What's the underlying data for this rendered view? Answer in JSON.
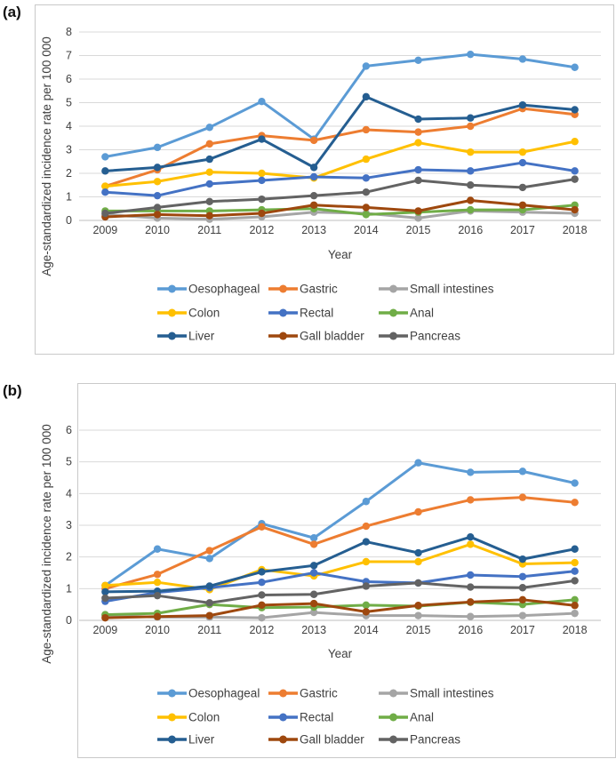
{
  "panels": {
    "a": {
      "label": "(a)"
    },
    "b": {
      "label": "(b)"
    }
  },
  "palette": {
    "grid_color": "#d9d9d9",
    "axis_line_color": "#bfbfbf",
    "text_color": "#404040"
  },
  "chart_data": [
    {
      "id": "a",
      "type": "line",
      "title": "",
      "xlabel": "Year",
      "ylabel": "Age-standardized incidence rate per 100 000",
      "x": [
        2009,
        2010,
        2011,
        2012,
        2013,
        2014,
        2015,
        2016,
        2017,
        2018
      ],
      "ylim": [
        0,
        8
      ],
      "ytick_step": 1,
      "grid": true,
      "legend_position": "bottom",
      "series": [
        {
          "name": "Oesophageal",
          "color": "#5B9BD5",
          "values": [
            2.7,
            3.1,
            3.95,
            5.05,
            3.45,
            6.55,
            6.8,
            7.05,
            6.85,
            6.5
          ]
        },
        {
          "name": "Gastric",
          "color": "#ED7D31",
          "values": [
            1.45,
            2.15,
            3.25,
            3.6,
            3.4,
            3.85,
            3.75,
            4.0,
            4.75,
            4.5
          ]
        },
        {
          "name": "Small intestines",
          "color": "#A5A5A5",
          "values": [
            0.25,
            0.1,
            0.05,
            0.15,
            0.35,
            0.3,
            0.1,
            0.4,
            0.35,
            0.3
          ]
        },
        {
          "name": "Colon",
          "color": "#FFC000",
          "values": [
            1.45,
            1.65,
            2.05,
            2.0,
            1.8,
            2.6,
            3.3,
            2.9,
            2.9,
            3.35
          ]
        },
        {
          "name": "Rectal",
          "color": "#4472C4",
          "values": [
            1.2,
            1.05,
            1.55,
            1.7,
            1.85,
            1.8,
            2.15,
            2.1,
            2.45,
            2.1
          ]
        },
        {
          "name": "Anal",
          "color": "#70AD47",
          "values": [
            0.4,
            0.4,
            0.4,
            0.45,
            0.5,
            0.25,
            0.35,
            0.45,
            0.45,
            0.65
          ]
        },
        {
          "name": "Liver",
          "color": "#255E91",
          "values": [
            2.1,
            2.25,
            2.6,
            3.45,
            2.25,
            5.25,
            4.3,
            4.35,
            4.9,
            4.7
          ]
        },
        {
          "name": "Gall bladder",
          "color": "#9E480E",
          "values": [
            0.15,
            0.25,
            0.2,
            0.3,
            0.65,
            0.55,
            0.4,
            0.85,
            0.65,
            0.45
          ]
        },
        {
          "name": "Pancreas",
          "color": "#636363",
          "values": [
            0.3,
            0.55,
            0.8,
            0.9,
            1.05,
            1.2,
            1.7,
            1.5,
            1.4,
            1.75
          ]
        }
      ]
    },
    {
      "id": "b",
      "type": "line",
      "title": "",
      "xlabel": "Year",
      "ylabel": "Age-standardized incidence rate per 100 000",
      "x": [
        2009,
        2010,
        2011,
        2012,
        2013,
        2014,
        2015,
        2016,
        2017,
        2018
      ],
      "ylim": [
        0,
        6
      ],
      "ytick_step": 1,
      "grid": true,
      "legend_position": "bottom",
      "series": [
        {
          "name": "Oesophageal",
          "color": "#5B9BD5",
          "values": [
            1.1,
            2.25,
            1.95,
            3.05,
            2.6,
            3.75,
            4.97,
            4.67,
            4.7,
            4.33
          ]
        },
        {
          "name": "Gastric",
          "color": "#ED7D31",
          "values": [
            1.0,
            1.45,
            2.2,
            2.95,
            2.4,
            2.97,
            3.42,
            3.8,
            3.88,
            3.72
          ]
        },
        {
          "name": "Small intestines",
          "color": "#A5A5A5",
          "values": [
            0.15,
            0.1,
            0.1,
            0.08,
            0.25,
            0.15,
            0.15,
            0.12,
            0.15,
            0.22
          ]
        },
        {
          "name": "Colon",
          "color": "#FFC000",
          "values": [
            1.1,
            1.2,
            0.97,
            1.6,
            1.4,
            1.85,
            1.85,
            2.4,
            1.78,
            1.82
          ]
        },
        {
          "name": "Rectal",
          "color": "#4472C4",
          "values": [
            0.6,
            0.88,
            1.03,
            1.2,
            1.5,
            1.22,
            1.18,
            1.43,
            1.38,
            1.55
          ]
        },
        {
          "name": "Anal",
          "color": "#70AD47",
          "values": [
            0.18,
            0.22,
            0.5,
            0.4,
            0.42,
            0.48,
            0.45,
            0.57,
            0.5,
            0.65
          ]
        },
        {
          "name": "Liver",
          "color": "#255E91",
          "values": [
            0.9,
            0.92,
            1.08,
            1.53,
            1.73,
            2.48,
            2.13,
            2.63,
            1.93,
            2.25
          ]
        },
        {
          "name": "Gall bladder",
          "color": "#9E480E",
          "values": [
            0.08,
            0.12,
            0.15,
            0.48,
            0.53,
            0.27,
            0.47,
            0.58,
            0.65,
            0.47
          ]
        },
        {
          "name": "Pancreas",
          "color": "#636363",
          "values": [
            0.7,
            0.78,
            0.55,
            0.8,
            0.82,
            1.08,
            1.18,
            1.05,
            1.03,
            1.25
          ]
        }
      ]
    }
  ]
}
